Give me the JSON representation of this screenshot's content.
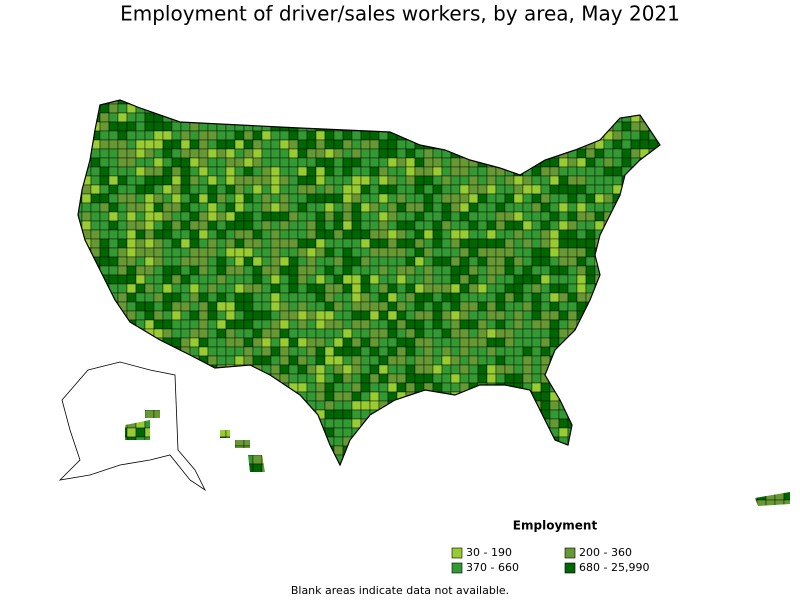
{
  "title": "Employment of driver/sales workers, by area, May 2021",
  "legend": {
    "title": "Employment",
    "items": [
      {
        "label": "30 - 190",
        "color": "#99cc33"
      },
      {
        "label": "200 - 360",
        "color": "#669933"
      },
      {
        "label": "370 - 660",
        "color": "#339933"
      },
      {
        "label": "680 - 25,990",
        "color": "#006600"
      }
    ]
  },
  "note": "Blank areas indicate data not available."
}
